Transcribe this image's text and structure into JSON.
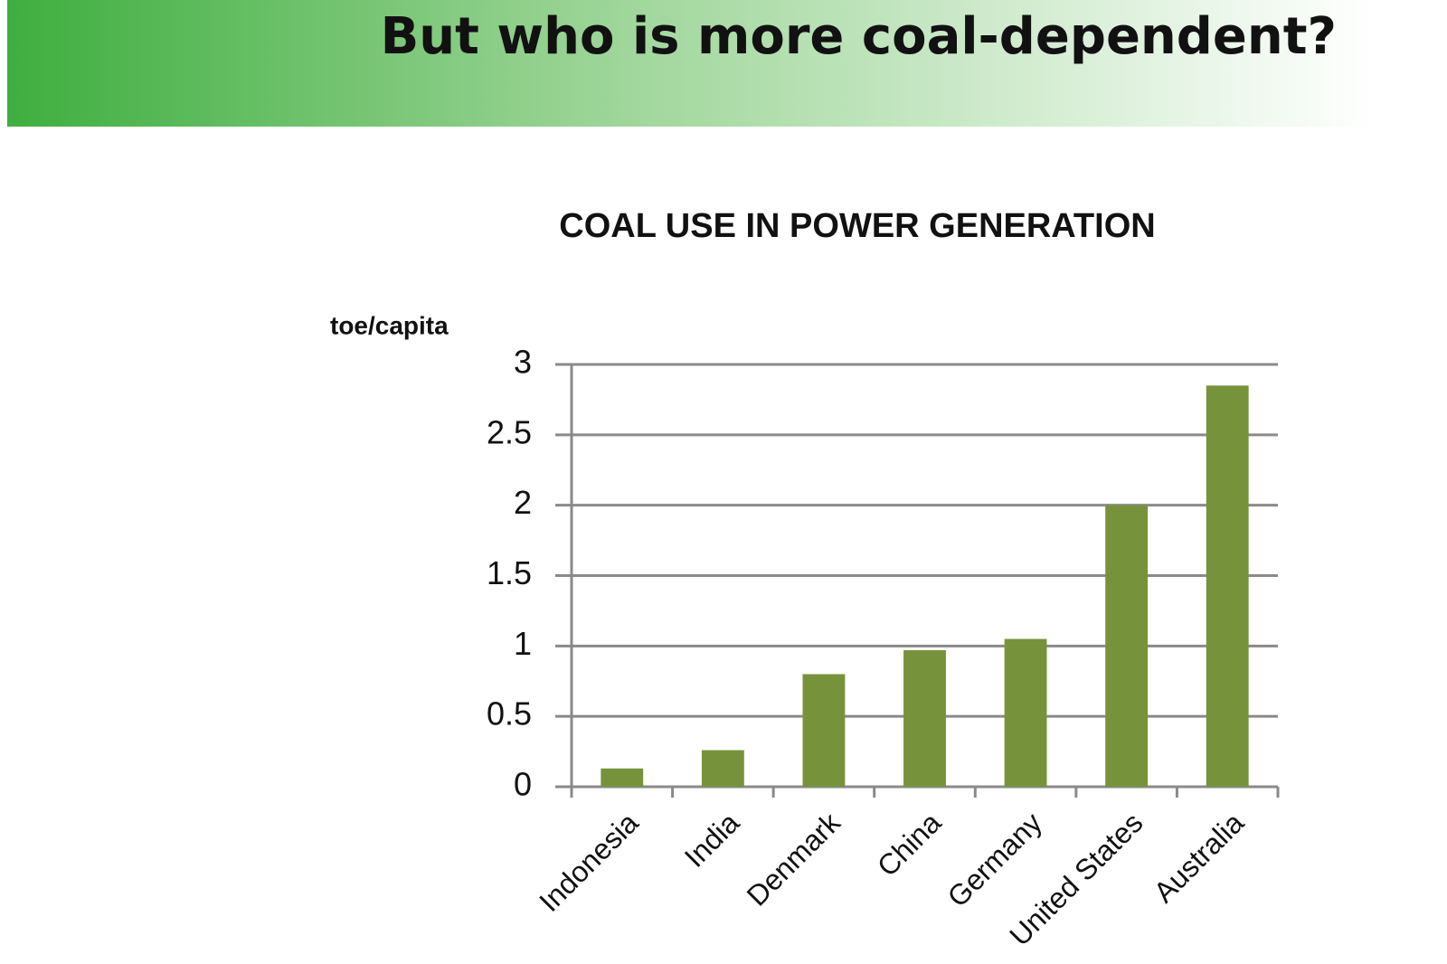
{
  "slide_title": "But who is more coal-dependent?",
  "chart_data": {
    "type": "bar",
    "title": "COAL USE IN POWER GENERATION",
    "y_label": "toe/capita",
    "categories": [
      "Indonesia",
      "India",
      "Denmark",
      "China",
      "Germany",
      "United States",
      "Australia"
    ],
    "values": [
      0.13,
      0.26,
      0.8,
      0.97,
      1.05,
      2.0,
      2.85
    ],
    "color": "#76933c",
    "ylim": [
      0,
      3
    ],
    "yticks": [
      0,
      0.5,
      1,
      1.5,
      2,
      2.5,
      3
    ],
    "grid": true
  }
}
